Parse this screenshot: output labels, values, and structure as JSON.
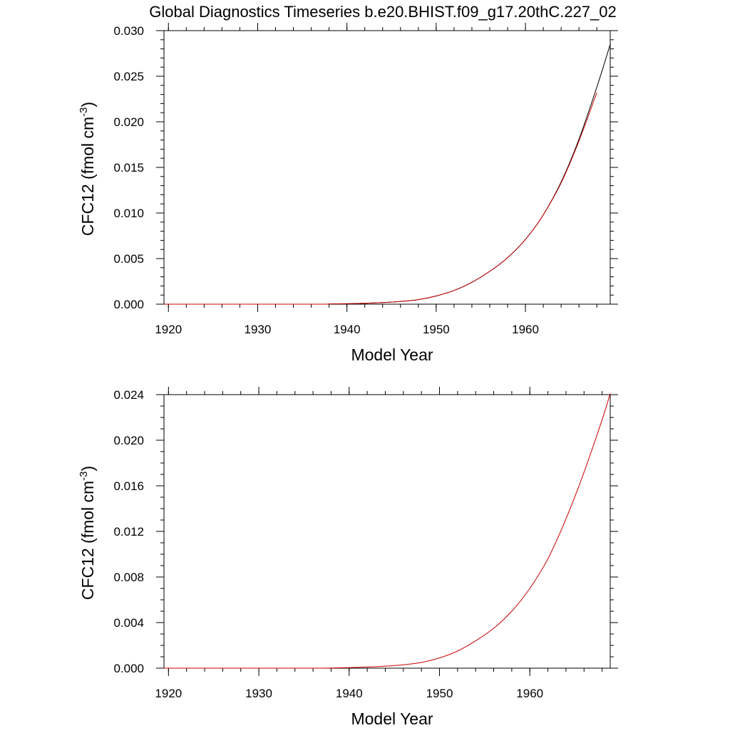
{
  "page_title": "Global Diagnostics Timeseries b.e20.BHIST.f09_g17.20thC.227_02",
  "chart_data": [
    {
      "type": "line",
      "xlabel": "Model Year",
      "ylabel_main": "CFC12 (fmol cm",
      "ylabel_sup": "-3",
      "ylabel_close": ")",
      "xlim": [
        1919.5,
        1969.5
      ],
      "ylim": [
        0,
        0.03
      ],
      "x_ticks": [
        1920,
        1930,
        1940,
        1950,
        1960
      ],
      "x_tick_labels": [
        "1920",
        "1930",
        "1940",
        "1950",
        "1960"
      ],
      "y_ticks": [
        0,
        0.005,
        0.01,
        0.015,
        0.02,
        0.025,
        0.03
      ],
      "y_tick_labels": [
        "0.000",
        "0.005",
        "0.010",
        "0.015",
        "0.020",
        "0.025",
        "0.030"
      ],
      "x_minor_step": 2,
      "y_minor_step": 0.001,
      "series": [
        {
          "color": "#000000",
          "x": [
            1936,
            1938,
            1940,
            1942,
            1944,
            1946,
            1948,
            1950,
            1952,
            1954,
            1956,
            1958,
            1960,
            1962,
            1964,
            1966,
            1968,
            1969.5
          ],
          "y": [
            0.0,
            2e-05,
            5e-05,
            0.0001,
            0.00018,
            0.0003,
            0.0005,
            0.0009,
            0.0015,
            0.0024,
            0.0036,
            0.0051,
            0.0071,
            0.0098,
            0.0134,
            0.0181,
            0.0238,
            0.0285
          ]
        },
        {
          "color": "#cc0000",
          "x": [
            1936,
            1938,
            1940,
            1942,
            1944,
            1946,
            1948,
            1950,
            1952,
            1954,
            1956,
            1958,
            1960,
            1962,
            1964,
            1966,
            1968
          ],
          "y": [
            0.0,
            2e-05,
            5e-05,
            0.0001,
            0.00018,
            0.0003,
            0.0005,
            0.0009,
            0.0015,
            0.0024,
            0.0036,
            0.0051,
            0.0071,
            0.0098,
            0.0133,
            0.0179,
            0.0232
          ]
        }
      ]
    },
    {
      "type": "line",
      "xlabel": "Model Year",
      "ylabel_main": "CFC12 (fmol cm",
      "ylabel_sup": "-3",
      "ylabel_close": ")",
      "xlim": [
        1919.5,
        1968.9
      ],
      "ylim": [
        0,
        0.024
      ],
      "x_ticks": [
        1920,
        1930,
        1940,
        1950,
        1960
      ],
      "x_tick_labels": [
        "1920",
        "1930",
        "1940",
        "1950",
        "1960"
      ],
      "y_ticks": [
        0,
        0.004,
        0.008,
        0.012,
        0.016,
        0.02,
        0.024
      ],
      "y_tick_labels": [
        "0.000",
        "0.004",
        "0.008",
        "0.012",
        "0.016",
        "0.020",
        "0.024"
      ],
      "x_minor_step": 2,
      "y_minor_step": 0.001,
      "series": [
        {
          "color": "#cc0000",
          "x": [
            1936,
            1938,
            1940,
            1942,
            1944,
            1946,
            1948,
            1950,
            1952,
            1954,
            1956,
            1958,
            1960,
            1962,
            1964,
            1966,
            1968,
            1968.9
          ],
          "y": [
            0.0,
            2e-05,
            5e-05,
            0.0001,
            0.00018,
            0.0003,
            0.0005,
            0.0009,
            0.0015,
            0.0024,
            0.0035,
            0.005,
            0.007,
            0.0096,
            0.0131,
            0.0172,
            0.0218,
            0.0241
          ]
        }
      ]
    }
  ]
}
